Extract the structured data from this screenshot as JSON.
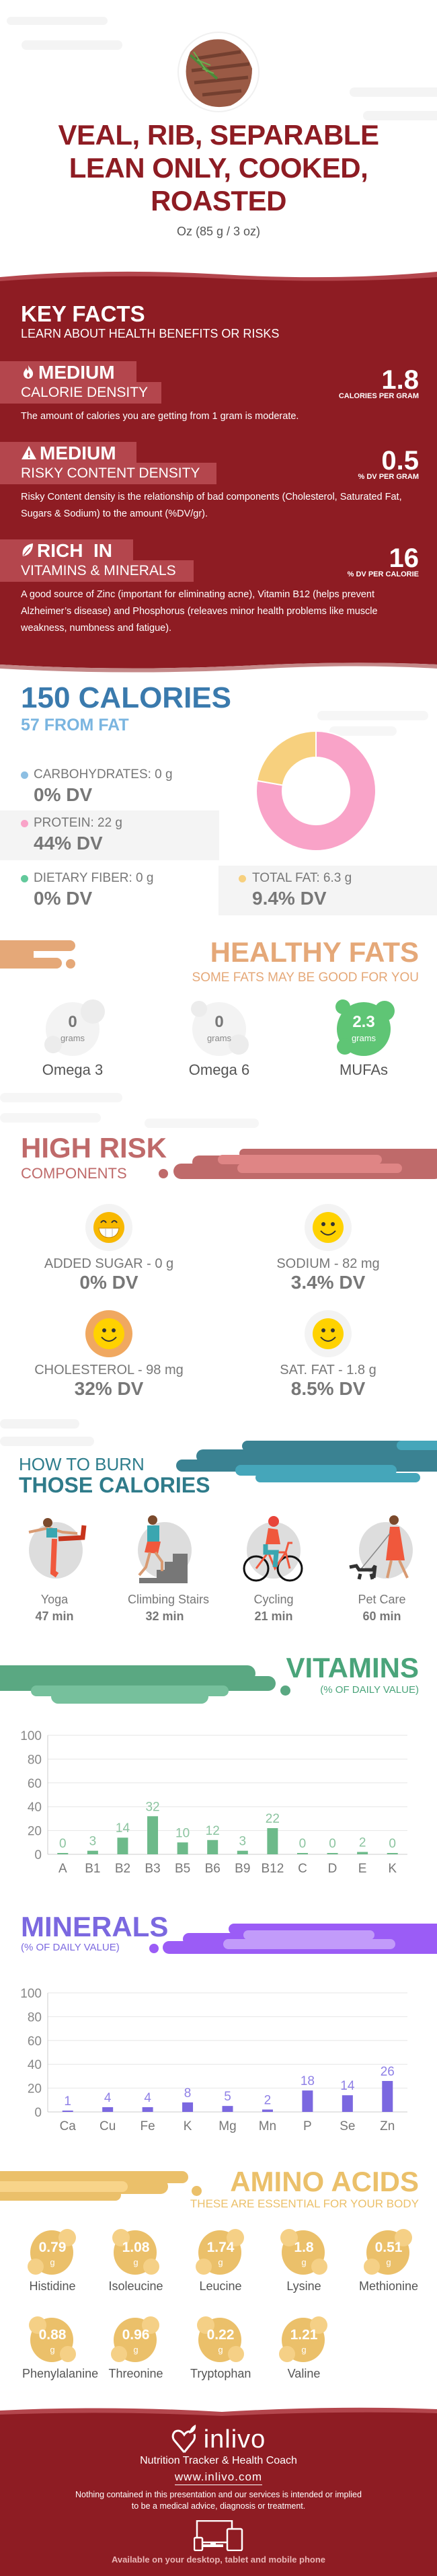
{
  "header": {
    "title_lines": [
      "VEAL, RIB, SEPARABLE",
      "LEAN ONLY, COOKED,",
      "ROASTED"
    ],
    "serving": "Oz (85 g / 3 oz)"
  },
  "colors": {
    "brand_red": "#8e1c23",
    "box_red": "#b4464d",
    "calories_blue": "#3a7aad",
    "healthy_fats": "#e5a878",
    "high_risk": "#bf6a6a",
    "burn_teal": "#2f7b8a",
    "vitamins_green": "#6dba8a",
    "minerals_purple": "#7b68e0",
    "amino_yellow": "#ebc06a"
  },
  "key_facts": {
    "title": "KEY FACTS",
    "subtitle": "LEARN ABOUT HEALTH BENEFITS OR RISKS",
    "items": [
      {
        "icon": "flame-icon",
        "level": "MEDIUM",
        "label": "CALORIE DENSITY",
        "value": "1.8",
        "unit": "CALORIES PER GRAM",
        "description": "The amount of calories you are getting from 1 gram is moderate."
      },
      {
        "icon": "warning-icon",
        "level": "MEDIUM",
        "label": "RISKY CONTENT DENSITY",
        "value": "0.5",
        "unit": "% DV PER GRAM",
        "description": "Risky Content density is the relationship of bad components (Cholesterol, Saturated Fat, Sugars & Sodium) to the amount (%DV/gr)."
      },
      {
        "icon": "leaf-icon",
        "level": "RICH  IN",
        "label": "VITAMINS & MINERALS",
        "value": "16",
        "unit": "% DV PER CALORIE",
        "description": "A good source of Zinc (important for eliminating acne), Vitamin B12 (helps prevent Alzheimer’s disease) and Phosphorus (releaves minor health problems like muscle weakness, numbness and fatigue)."
      }
    ]
  },
  "calories": {
    "title": "150 CALORIES",
    "subtitle": "57 FROM FAT",
    "macros": [
      {
        "label": "CARBOHYDRATES: 0 g",
        "dv": "0% DV",
        "grams": 0,
        "color": "#8dbfe3"
      },
      {
        "label": "PROTEIN: 22 g",
        "dv": "44% DV",
        "grams": 22,
        "color": "#f9a3c8"
      },
      {
        "label": "DIETARY FIBER: 0 g",
        "dv": "0% DV",
        "grams": 0,
        "color": "#62c99b"
      },
      {
        "label": "TOTAL FAT: 6.3 g",
        "dv": "9.4% DV",
        "grams": 6.3,
        "color": "#f7d07e"
      }
    ]
  },
  "healthy_fats": {
    "title": "HEALTHY FATS",
    "subtitle": "SOME FATS MAY BE GOOD FOR YOU",
    "items": [
      {
        "name": "Omega 3",
        "value": "0",
        "unit": "grams",
        "highlight": false
      },
      {
        "name": "Omega 6",
        "value": "0",
        "unit": "grams",
        "highlight": false
      },
      {
        "name": "MUFAs",
        "value": "2.3",
        "unit": "grams",
        "highlight": true
      }
    ]
  },
  "high_risk": {
    "title": "HIGH RISK",
    "subtitle": "COMPONENTS",
    "items": [
      {
        "label": "ADDED SUGAR - 0 g",
        "dv": "0% DV",
        "icon": "grinning-face-icon",
        "bg": "#f3f3f3"
      },
      {
        "label": "SODIUM - 82 mg",
        "dv": "3.4% DV",
        "icon": "smiley-face-icon",
        "bg": "#f3f3f3"
      },
      {
        "label": "CHOLESTEROL - 98 mg",
        "dv": "32% DV",
        "icon": "smiley-face-icon",
        "bg": "#f0a860"
      },
      {
        "label": "SAT. FAT - 1.8 g",
        "dv": "8.5% DV",
        "icon": "smiley-face-icon",
        "bg": "#f3f3f3"
      }
    ]
  },
  "burn": {
    "title_top": "HOW TO BURN",
    "title_bottom": "THOSE CALORIES",
    "activities": [
      {
        "name": "Yoga",
        "time": "47 min",
        "icon": "yoga-icon"
      },
      {
        "name": "Climbing Stairs",
        "time": "32 min",
        "icon": "climbing-stairs-icon"
      },
      {
        "name": "Cycling",
        "time": "21 min",
        "icon": "cycling-icon"
      },
      {
        "name": "Pet Care",
        "time": "60 min",
        "icon": "dog-walking-icon"
      }
    ]
  },
  "vitamins": {
    "title": "VITAMINS",
    "subtitle": "(% OF DAILY VALUE)"
  },
  "minerals": {
    "title": "MINERALS",
    "subtitle": "(% OF DAILY VALUE)"
  },
  "chart_data": [
    {
      "type": "bar",
      "categories": [
        "A",
        "B1",
        "B2",
        "B3",
        "B5",
        "B6",
        "B9",
        "B12",
        "C",
        "D",
        "E",
        "K"
      ],
      "values": [
        0,
        3,
        14,
        32,
        10,
        12,
        3,
        22,
        0,
        0,
        2,
        0
      ],
      "yticks": [
        0,
        20,
        40,
        60,
        80,
        100
      ],
      "ylim": [
        0,
        100
      ],
      "grid": true,
      "color": "#6dba8a",
      "label_color": "#8cc4a0"
    },
    {
      "type": "bar",
      "categories": [
        "Ca",
        "Cu",
        "Fe",
        "K",
        "Mg",
        "Mn",
        "P",
        "Se",
        "Zn"
      ],
      "values": [
        1,
        4,
        4,
        8,
        5,
        2,
        18,
        14,
        26
      ],
      "yticks": [
        0,
        20,
        40,
        60,
        80,
        100
      ],
      "ylim": [
        0,
        100
      ],
      "grid": true,
      "color": "#7b68e0",
      "label_color": "#8f80e6"
    }
  ],
  "amino_acids": {
    "title": "AMINO ACIDS",
    "subtitle": "THESE ARE ESSENTIAL FOR YOUR BODY",
    "unit": "g",
    "items": [
      {
        "name": "Histidine",
        "value": "0.79"
      },
      {
        "name": "Isoleucine",
        "value": "1.08"
      },
      {
        "name": "Leucine",
        "value": "1.74"
      },
      {
        "name": "Lysine",
        "value": "1.8"
      },
      {
        "name": "Methionine",
        "value": "0.51"
      },
      {
        "name": "Phenylalanine",
        "value": "0.88"
      },
      {
        "name": "Threonine",
        "value": "0.96"
      },
      {
        "name": "Tryptophan",
        "value": "0.22"
      },
      {
        "name": "Valine",
        "value": "1.21"
      }
    ]
  },
  "footer": {
    "brand": "inlivo",
    "tagline": "Nutrition Tracker & Health Coach",
    "url": "www.inlivo.com",
    "disclaimer_lines": [
      "Nothing contained in this presentation and our services is intended or implied",
      "to be a medical advice, diagnosis or treatment."
    ],
    "availability": "Available on your desktop, tablet and mobile phone"
  }
}
